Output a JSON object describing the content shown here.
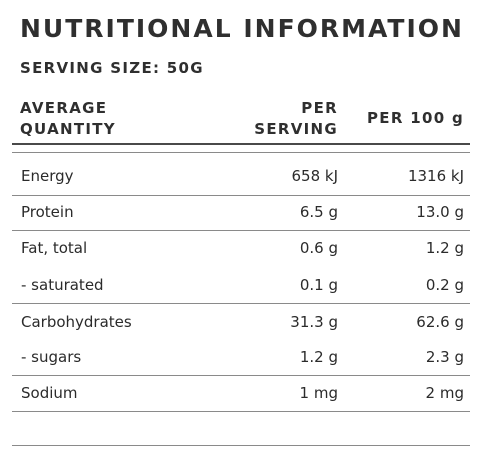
{
  "title": "NUTRITIONAL INFORMATION",
  "serving_size": "SERVING SIZE: 50G",
  "columns": {
    "quantity": [
      "AVERAGE",
      "QUANTITY"
    ],
    "per_serving": [
      "PER",
      "SERVING"
    ],
    "per_100g": "PER 100 g"
  },
  "rows": [
    {
      "name": "Energy",
      "per_serving": "658 kJ",
      "per_100g": "1316 kJ"
    },
    {
      "name": "Protein",
      "per_serving": "6.5 g",
      "per_100g": "13.0 g"
    },
    {
      "name": "Fat, total",
      "per_serving": "0.6 g",
      "per_100g": "1.2 g"
    },
    {
      "name": "- saturated",
      "per_serving": "0.1 g",
      "per_100g": "0.2 g"
    },
    {
      "name": "Carbohydrates",
      "per_serving": "31.3 g",
      "per_100g": "62.6 g"
    },
    {
      "name": "- sugars",
      "per_serving": "1.2 g",
      "per_100g": "2.3 g"
    },
    {
      "name": "Sodium",
      "per_serving": "1 mg",
      "per_100g": "2 mg"
    }
  ]
}
